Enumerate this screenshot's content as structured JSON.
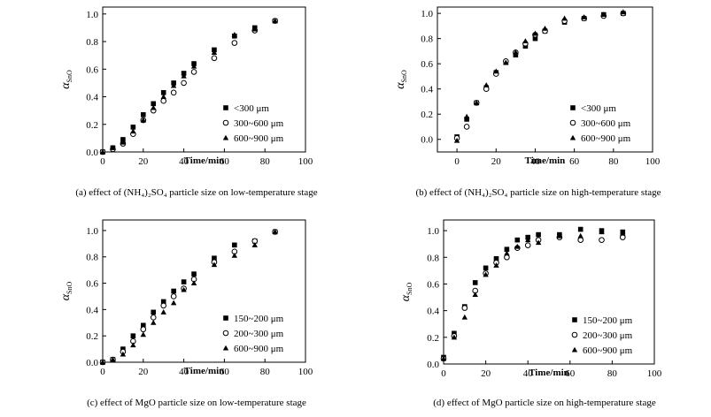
{
  "chart_data": [
    {
      "type": "scatter",
      "caption": "(a) effect of (NH₄)₂SO₄ particle size on low-temperature stage",
      "xlabel": "Time/min",
      "ylabel": "α",
      "ylabel_sub": "SnO",
      "xlim": [
        0,
        100
      ],
      "ylim": [
        0,
        1.05
      ],
      "xticks": [
        0,
        20,
        40,
        60,
        80,
        100
      ],
      "yticks": [
        0.0,
        0.2,
        0.4,
        0.6,
        0.8,
        1.0
      ],
      "legend_position": "bottom-right",
      "series": [
        {
          "name": "<300 μm",
          "marker": "square",
          "x": [
            0,
            5,
            10,
            15,
            20,
            25,
            30,
            35,
            40,
            45,
            55,
            65,
            75,
            85
          ],
          "y": [
            0.0,
            0.03,
            0.09,
            0.18,
            0.27,
            0.35,
            0.43,
            0.5,
            0.57,
            0.64,
            0.74,
            0.84,
            0.9,
            0.95
          ]
        },
        {
          "name": "300~600 μm",
          "marker": "circle",
          "x": [
            0,
            5,
            10,
            15,
            20,
            25,
            30,
            35,
            40,
            45,
            55,
            65,
            75,
            85
          ],
          "y": [
            0.0,
            0.02,
            0.06,
            0.13,
            0.23,
            0.3,
            0.37,
            0.43,
            0.5,
            0.58,
            0.68,
            0.79,
            0.88,
            0.95
          ]
        },
        {
          "name": "600~900 μm",
          "marker": "triangle",
          "x": [
            0,
            5,
            10,
            15,
            20,
            25,
            30,
            35,
            40,
            45,
            55,
            65,
            75,
            85
          ],
          "y": [
            0.0,
            0.03,
            0.07,
            0.15,
            0.23,
            0.32,
            0.4,
            0.48,
            0.55,
            0.62,
            0.72,
            0.85,
            0.89,
            0.95
          ]
        }
      ]
    },
    {
      "type": "scatter",
      "caption": "(b) effect of (NH₄)₂SO₄ particle size on high-temperature stage",
      "xlabel": "Time/min",
      "ylabel": "α",
      "ylabel_sub": "SnO",
      "xlim": [
        -10,
        100
      ],
      "ylim": [
        -0.1,
        1.05
      ],
      "xticks": [
        0,
        20,
        40,
        60,
        80,
        100
      ],
      "yticks": [
        0.0,
        0.2,
        0.4,
        0.6,
        0.8,
        1.0
      ],
      "legend_position": "bottom-right",
      "series": [
        {
          "name": "<300 μm",
          "marker": "square",
          "x": [
            0,
            5,
            10,
            15,
            20,
            25,
            30,
            35,
            40,
            45,
            55,
            65,
            75,
            85
          ],
          "y": [
            0.02,
            0.16,
            0.29,
            0.41,
            0.53,
            0.61,
            0.67,
            0.74,
            0.8,
            0.86,
            0.93,
            0.96,
            0.99,
            1.0
          ]
        },
        {
          "name": "300~600 μm",
          "marker": "circle",
          "x": [
            0,
            5,
            10,
            15,
            20,
            25,
            30,
            35,
            40,
            45,
            55,
            65,
            75,
            85
          ],
          "y": [
            0.01,
            0.1,
            0.29,
            0.4,
            0.52,
            0.62,
            0.69,
            0.76,
            0.83,
            0.86,
            0.94,
            0.96,
            0.98,
            1.0
          ]
        },
        {
          "name": "600~900 μm",
          "marker": "triangle",
          "x": [
            0,
            5,
            10,
            15,
            20,
            25,
            30,
            35,
            40,
            45,
            55,
            65,
            75,
            85
          ],
          "y": [
            -0.01,
            0.18,
            0.29,
            0.43,
            0.54,
            0.61,
            0.69,
            0.78,
            0.84,
            0.88,
            0.96,
            0.97,
            0.99,
            1.01
          ]
        }
      ]
    },
    {
      "type": "scatter",
      "caption": "(c) effect of MgO particle size on low-temperature stage",
      "xlabel": "Time/min",
      "ylabel": "α",
      "ylabel_sub": "SnO",
      "xlim": [
        0,
        100
      ],
      "ylim": [
        0,
        1.08
      ],
      "xticks": [
        0,
        20,
        40,
        60,
        80,
        100
      ],
      "yticks": [
        0.0,
        0.2,
        0.4,
        0.6,
        0.8,
        1.0
      ],
      "legend_position": "bottom-right",
      "series": [
        {
          "name": "150~200 μm",
          "marker": "square",
          "x": [
            0,
            5,
            10,
            15,
            20,
            25,
            30,
            35,
            40,
            45,
            55,
            65,
            75,
            85
          ],
          "y": [
            0.0,
            0.02,
            0.1,
            0.2,
            0.28,
            0.38,
            0.46,
            0.54,
            0.61,
            0.67,
            0.79,
            0.89,
            0.92,
            0.99
          ]
        },
        {
          "name": "200~300 μm",
          "marker": "circle",
          "x": [
            0,
            5,
            10,
            15,
            20,
            25,
            30,
            35,
            40,
            45,
            55,
            65,
            75,
            85
          ],
          "y": [
            0.0,
            0.02,
            0.08,
            0.16,
            0.25,
            0.34,
            0.43,
            0.5,
            0.56,
            0.63,
            0.76,
            0.84,
            0.92,
            0.99
          ]
        },
        {
          "name": "600~900 μm",
          "marker": "triangle",
          "x": [
            0,
            5,
            10,
            15,
            20,
            25,
            30,
            35,
            40,
            45,
            55,
            65,
            75,
            85
          ],
          "y": [
            0.0,
            0.02,
            0.06,
            0.13,
            0.21,
            0.3,
            0.38,
            0.45,
            0.55,
            0.6,
            0.74,
            0.81,
            0.89,
            0.99
          ]
        }
      ]
    },
    {
      "type": "scatter",
      "caption": "(d) effect of MgO particle size on high-temperature stage",
      "xlabel": "Time/min",
      "ylabel": "α",
      "ylabel_sub": "SnO",
      "xlim": [
        0,
        100
      ],
      "ylim": [
        0,
        1.08
      ],
      "xticks": [
        0,
        20,
        40,
        60,
        80,
        100
      ],
      "yticks": [
        0.0,
        0.2,
        0.4,
        0.6,
        0.8,
        1.0
      ],
      "legend_position": "bottom-right",
      "series": [
        {
          "name": "150~200 μm",
          "marker": "square",
          "x": [
            0,
            5,
            10,
            15,
            20,
            25,
            30,
            35,
            40,
            45,
            55,
            65,
            75,
            85
          ],
          "y": [
            0.05,
            0.23,
            0.43,
            0.61,
            0.72,
            0.79,
            0.86,
            0.93,
            0.95,
            0.97,
            0.97,
            1.01,
            1.0,
            0.99
          ]
        },
        {
          "name": "200~300 μm",
          "marker": "circle",
          "x": [
            0,
            5,
            10,
            15,
            20,
            25,
            30,
            35,
            40,
            45,
            55,
            65,
            75,
            85
          ],
          "y": [
            0.04,
            0.21,
            0.42,
            0.55,
            0.68,
            0.76,
            0.8,
            0.87,
            0.89,
            0.93,
            0.95,
            0.93,
            0.93,
            0.95
          ]
        },
        {
          "name": "600~900 μm",
          "marker": "triangle",
          "x": [
            0,
            5,
            10,
            15,
            20,
            25,
            30,
            35,
            40,
            45,
            55,
            65,
            75,
            85
          ],
          "y": [
            0.04,
            0.2,
            0.35,
            0.52,
            0.67,
            0.74,
            0.83,
            0.88,
            0.93,
            0.91,
            0.96,
            0.96,
            0.99,
            0.98
          ]
        }
      ]
    }
  ]
}
